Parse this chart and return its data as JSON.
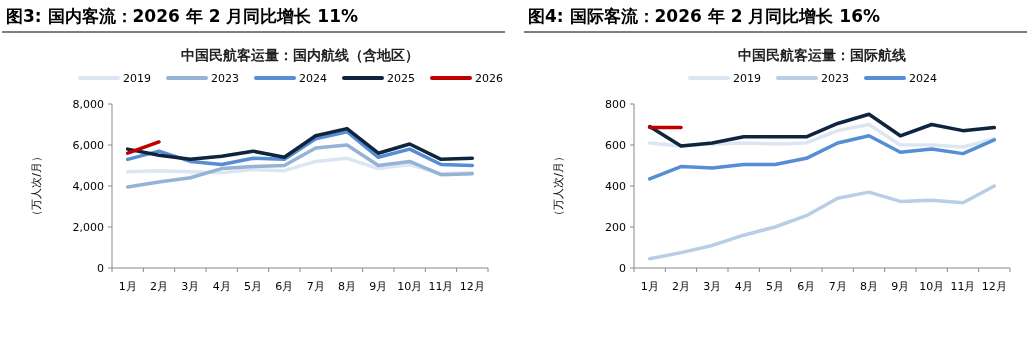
{
  "chart_data": [
    {
      "type": "line",
      "title": "图3:  国内客流：2026 年 2 月同比增长 11%",
      "subtitle": "中国民航客运量：国内航线（含地区）",
      "ylabel": "（万人次/月）",
      "categories": [
        "1月",
        "2月",
        "3月",
        "4月",
        "5月",
        "6月",
        "7月",
        "8月",
        "9月",
        "10月",
        "11月",
        "12月"
      ],
      "ylim": [
        0,
        8000
      ],
      "yticks": [
        {
          "value": 0,
          "label": "0"
        },
        {
          "value": 2000,
          "label": "2,000"
        },
        {
          "value": 4000,
          "label": "4,000"
        },
        {
          "value": 6000,
          "label": "6,000"
        },
        {
          "value": 8000,
          "label": "8,000"
        }
      ],
      "legend": "top",
      "grid": false,
      "marker": "none",
      "series": [
        {
          "name": "2019",
          "color": "#dce6f2",
          "values": [
            4700,
            4750,
            4700,
            4650,
            4800,
            4750,
            5200,
            5350,
            4850,
            5050,
            4600,
            4650
          ]
        },
        {
          "name": "2023",
          "color": "#95b3d7",
          "values": [
            3950,
            4200,
            4400,
            4850,
            4950,
            5000,
            5850,
            6000,
            5000,
            5200,
            4550,
            4600
          ]
        },
        {
          "name": "2024",
          "color": "#558ed5",
          "values": [
            5300,
            5700,
            5200,
            5050,
            5350,
            5300,
            6300,
            6650,
            5400,
            5800,
            5050,
            5000
          ]
        },
        {
          "name": "2025",
          "color": "#0f243e",
          "values": [
            5800,
            5500,
            5300,
            5450,
            5700,
            5400,
            6450,
            6800,
            5600,
            6050,
            5300,
            5350
          ]
        },
        {
          "name": "2026",
          "color": "#c00000",
          "values": [
            5600,
            6150,
            null,
            null,
            null,
            null,
            null,
            null,
            null,
            null,
            null,
            null
          ]
        }
      ]
    },
    {
      "type": "line",
      "title": "图4:  国际客流：2026 年 2 月同比增长 16%",
      "subtitle": "中国民航客运量：国际航线",
      "ylabel": "（万人次/月）",
      "categories": [
        "1月",
        "2月",
        "3月",
        "4月",
        "5月",
        "6月",
        "7月",
        "8月",
        "9月",
        "10月",
        "11月",
        "12月"
      ],
      "ylim": [
        0,
        800
      ],
      "yticks": [
        0,
        200,
        400,
        600,
        800
      ],
      "legend": "top",
      "grid": false,
      "marker": "none",
      "series": [
        {
          "name": "2019",
          "color": "#dce6f2",
          "values": [
            610,
            595,
            605,
            610,
            605,
            610,
            670,
            700,
            600,
            600,
            590,
            630
          ]
        },
        {
          "name": "2023",
          "color": "#b9cde5",
          "values": [
            45,
            75,
            110,
            160,
            200,
            255,
            340,
            370,
            325,
            330,
            318,
            400
          ]
        },
        {
          "name": "2024",
          "color": "#558ed5",
          "values": [
            435,
            495,
            488,
            505,
            505,
            535,
            610,
            645,
            565,
            580,
            558,
            625
          ]
        },
        {
          "color": "#0f243e",
          "values": [
            690,
            595,
            610,
            640,
            640,
            640,
            705,
            750,
            645,
            700,
            670,
            685
          ]
        },
        {
          "color": "#c00000",
          "values": [
            685,
            685,
            null,
            null,
            null,
            null,
            null,
            null,
            null,
            null,
            null,
            null
          ]
        }
      ]
    }
  ]
}
